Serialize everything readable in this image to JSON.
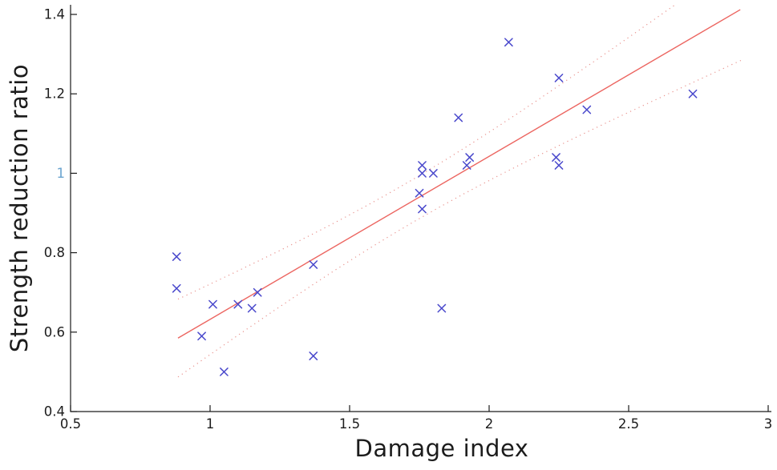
{
  "figure": {
    "background": "#ffffff"
  },
  "chart_data": {
    "type": "scatter",
    "title": "",
    "xlabel": "Damage index",
    "ylabel": "Strength reduction ratio",
    "xlim": [
      0.5,
      3.0
    ],
    "ylim": [
      0.4,
      1.4
    ],
    "grid": false,
    "legend": "none",
    "x_ticks": [
      0.5,
      1,
      1.5,
      2,
      2.5,
      3
    ],
    "x_tick_labels": [
      "0.5",
      "1",
      "1.5",
      "2",
      "2.5",
      "3"
    ],
    "y_ticks": [
      0.4,
      0.6,
      0.8,
      1,
      1.2,
      1.4
    ],
    "y_tick_labels": [
      "0.4",
      "0.6",
      "0.8",
      "1",
      "1.2",
      "1.4"
    ],
    "y_tick_colors": [
      "#1c1c1c",
      "#1c1c1c",
      "#1c1c1c",
      "#6ba4cf",
      "#1c1c1c",
      "#1c1c1c"
    ],
    "series": [
      {
        "name": "observations",
        "type": "scatter",
        "marker": "x",
        "color": "#4a49cc",
        "points": [
          [
            0.88,
            0.79
          ],
          [
            0.88,
            0.71
          ],
          [
            0.97,
            0.59
          ],
          [
            1.01,
            0.67
          ],
          [
            1.05,
            0.5
          ],
          [
            1.1,
            0.67
          ],
          [
            1.15,
            0.66
          ],
          [
            1.17,
            0.7
          ],
          [
            1.37,
            0.54
          ],
          [
            1.37,
            0.77
          ],
          [
            1.75,
            0.95
          ],
          [
            1.76,
            0.91
          ],
          [
            1.76,
            1.0
          ],
          [
            1.76,
            1.02
          ],
          [
            1.8,
            1.0
          ],
          [
            1.83,
            0.66
          ],
          [
            1.89,
            1.14
          ],
          [
            1.92,
            1.02
          ],
          [
            1.93,
            1.04
          ],
          [
            2.07,
            1.33
          ],
          [
            2.24,
            1.04
          ],
          [
            2.25,
            1.02
          ],
          [
            2.25,
            1.24
          ],
          [
            2.35,
            1.16
          ],
          [
            2.73,
            1.2
          ]
        ]
      },
      {
        "name": "linear-fit",
        "type": "line",
        "style": "solid",
        "color": "#ec6560",
        "endpoints": [
          [
            0.885,
            0.585
          ],
          [
            2.9,
            1.412
          ]
        ]
      },
      {
        "name": "confidence-band",
        "type": "dotted-band",
        "style": "dotted",
        "color": "#e5807a",
        "x_range": [
          0.885,
          2.925
        ],
        "center_x": 1.715,
        "min_half_width": 0.054,
        "curvature": 0.0097
      }
    ]
  }
}
